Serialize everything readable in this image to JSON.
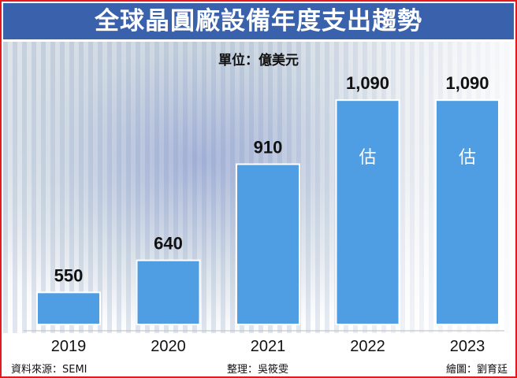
{
  "title": "全球晶圓廠設備年度支出趨勢",
  "unit_label": "單位：億美元",
  "footer": {
    "source": "資料來源：SEMI",
    "editor": "整理：吳筱雯",
    "artist": "繪圖：劉育廷"
  },
  "colors": {
    "title_bar": "#3a62ac",
    "bar": "#4f9de2",
    "border": "#e21a22"
  },
  "chart_data": {
    "type": "bar",
    "title": "全球晶圓廠設備年度支出趨勢",
    "xlabel": "",
    "ylabel": "",
    "unit": "億美元",
    "categories": [
      "2019",
      "2020",
      "2021",
      "2022",
      "2023"
    ],
    "values": [
      550,
      640,
      910,
      1090,
      1090
    ],
    "data_labels": [
      "550",
      "640",
      "910",
      "1,090",
      "1,090"
    ],
    "bar_annotations": [
      "",
      "",
      "",
      "估",
      "估"
    ],
    "ylim": [
      460,
      1150
    ],
    "grid": false
  }
}
